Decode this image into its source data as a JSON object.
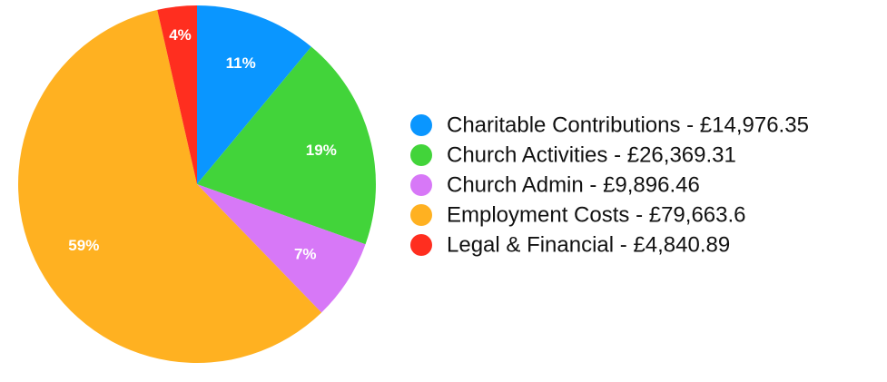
{
  "chart_data": {
    "type": "pie",
    "title": "",
    "slices": [
      {
        "label": "Charitable Contributions - £14,976.35",
        "value": 14976.35,
        "percent_label": "11%",
        "color": "#0a96ff"
      },
      {
        "label": "Church Activities - £26,369.31",
        "value": 26369.31,
        "percent_label": "19%",
        "color": "#42d43a"
      },
      {
        "label": "Church Admin - £9,896.46",
        "value": 9896.46,
        "percent_label": "7%",
        "color": "#d778f7"
      },
      {
        "label": "Employment Costs - £79,663.6",
        "value": 79663.6,
        "percent_label": "59%",
        "color": "#ffb121"
      },
      {
        "label": "Legal & Financial - £4,840.89",
        "value": 4840.89,
        "percent_label": "4%",
        "color": "#ff2e1f"
      }
    ],
    "legend_position": "right"
  }
}
